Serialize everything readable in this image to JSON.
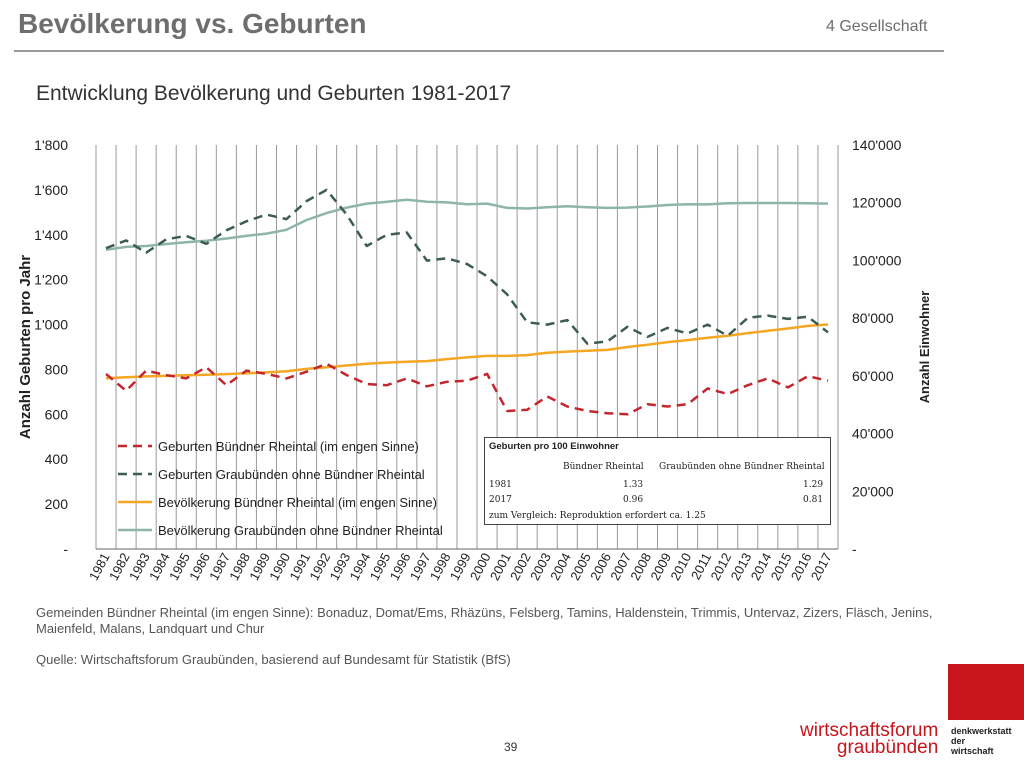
{
  "slide": {
    "title": "Bevölkerung vs. Geburten",
    "section": "4 Gesellschaft",
    "page_number": "39"
  },
  "footnote": "Gemeinden Bündner Rheintal (im engen Sinne): Bonaduz, Domat/Ems, Rhäzüns, Felsberg, Tamins, Haldenstein, Trimmis, Untervaz, Zizers, Fläsch, Jenins, Maienfeld, Malans, Landquart und Chur",
  "source": "Quelle: Wirtschaftsforum Graubünden, basierend auf Bundesamt für Statistik (BfS)",
  "logo": {
    "line1": "wirtschaftsforum",
    "line2": "graubünden",
    "side1": "denkwerkstatt",
    "side2": "der",
    "side3": "wirtschaft"
  },
  "colors": {
    "red_series": "#c4262e",
    "darkgreen_series": "#3e5d52",
    "orange_series": "#f5a623",
    "teal_series": "#8fb5a8",
    "brand_red": "#c8141b"
  },
  "infobox": {
    "title": "Geburten pro 100 Einwohner",
    "col1": "Bündner Rheintal",
    "col2": "Graubünden ohne Bündner Rheintal",
    "rows": [
      {
        "label": "1981",
        "v1": "1.33",
        "v2": "1.29"
      },
      {
        "label": "2017",
        "v1": "0.96",
        "v2": "0.81"
      }
    ],
    "note": "zum Vergleich: Reproduktion erfordert ca. 1.25"
  },
  "chart_data": {
    "type": "line",
    "title": "Entwicklung Bevölkerung und Geburten 1981-2017",
    "ylabel_left": "Anzahl Geburten pro Jahr",
    "ylabel_right": "Anzahl Einwohner",
    "ylim_left": [
      0,
      1800
    ],
    "ylim_right": [
      0,
      140000
    ],
    "yticks_left": [
      "-",
      "200",
      "400",
      "600",
      "800",
      "1'000",
      "1'200",
      "1'400",
      "1'600",
      "1'800"
    ],
    "yticks_right": [
      "-",
      "20'000",
      "40'000",
      "60'000",
      "80'000",
      "100'000",
      "120'000",
      "140'000"
    ],
    "grid": "vertical",
    "legend_position": "bottom-left",
    "categories": [
      "1981",
      "1982",
      "1983",
      "1984",
      "1985",
      "1986",
      "1987",
      "1988",
      "1989",
      "1990",
      "1991",
      "1992",
      "1993",
      "1994",
      "1995",
      "1996",
      "1997",
      "1998",
      "1999",
      "2000",
      "2001",
      "2002",
      "2003",
      "2004",
      "2005",
      "2006",
      "2007",
      "2008",
      "2009",
      "2010",
      "2011",
      "2012",
      "2013",
      "2014",
      "2015",
      "2016",
      "2017"
    ],
    "series": [
      {
        "name": "Geburten Bündner Rheintal (im engen Sinne)",
        "axis": "left",
        "style": "dashed",
        "color": "#c4262e",
        "values": [
          780,
          705,
          795,
          775,
          760,
          810,
          730,
          795,
          780,
          760,
          790,
          825,
          775,
          735,
          730,
          760,
          725,
          745,
          750,
          780,
          615,
          620,
          680,
          635,
          615,
          605,
          600,
          645,
          635,
          645,
          715,
          690,
          730,
          760,
          720,
          770,
          750
        ]
      },
      {
        "name": "Geburten Graubünden ohne Bündner Rheintal",
        "axis": "left",
        "style": "dashed",
        "color": "#3e5d52",
        "values": [
          1340,
          1375,
          1320,
          1380,
          1395,
          1360,
          1420,
          1460,
          1490,
          1470,
          1550,
          1600,
          1490,
          1350,
          1400,
          1410,
          1285,
          1295,
          1270,
          1215,
          1135,
          1010,
          1000,
          1020,
          915,
          925,
          990,
          945,
          985,
          960,
          1000,
          950,
          1030,
          1040,
          1025,
          1035,
          965
        ]
      },
      {
        "name": "Bevölkerung Bündner Rheintal (im engen Sinne)",
        "axis": "right",
        "style": "solid",
        "color": "#f5a623",
        "values": [
          59200,
          59500,
          59800,
          60000,
          60200,
          60400,
          60600,
          60900,
          61200,
          61600,
          62400,
          63000,
          63600,
          64200,
          64600,
          64900,
          65100,
          65800,
          66400,
          66900,
          66900,
          67200,
          68000,
          68400,
          68700,
          69000,
          70000,
          70800,
          71700,
          72400,
          73200,
          73900,
          74800,
          75600,
          76400,
          77300,
          77800
        ]
      },
      {
        "name": "Bevölkerung Graubünden ohne Bündner Rheintal",
        "axis": "right",
        "style": "solid",
        "color": "#8fb5a8",
        "values": [
          103700,
          104700,
          105000,
          105700,
          106300,
          106800,
          107600,
          108500,
          109300,
          110600,
          114000,
          116400,
          118300,
          119700,
          120300,
          121000,
          120300,
          120100,
          119500,
          119700,
          118200,
          118000,
          118400,
          118800,
          118400,
          118200,
          118300,
          118700,
          119200,
          119500,
          119400,
          119800,
          119900,
          119900,
          119900,
          119800,
          119700
        ]
      }
    ]
  }
}
